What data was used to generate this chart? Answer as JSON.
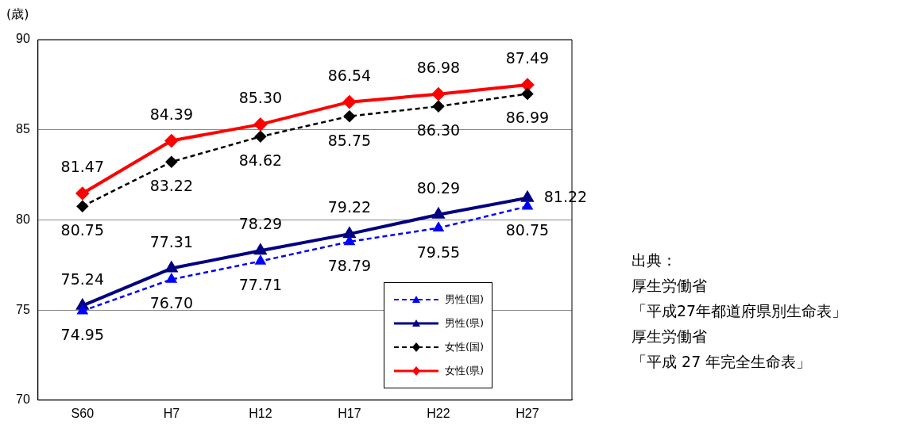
{
  "chart_data": {
    "type": "line",
    "ylabel": "(歳)",
    "categories": [
      "S60",
      "H7",
      "H12",
      "H17",
      "H22",
      "H27"
    ],
    "series": [
      {
        "name": "男性(国)",
        "color": "#0000ff",
        "marker": "triangle",
        "line_style": "dashed",
        "values": [
          74.95,
          76.7,
          77.71,
          78.79,
          79.55,
          80.75
        ],
        "value_labels": [
          "74.95",
          "76.70",
          "77.71",
          "78.79",
          "79.55",
          "80.75"
        ]
      },
      {
        "name": "男性(県)",
        "color": "#000080",
        "marker": "triangle",
        "line_style": "solid",
        "values": [
          75.24,
          77.31,
          78.29,
          79.22,
          80.29,
          81.22
        ],
        "value_labels": [
          "75.24",
          "77.31",
          "78.29",
          "79.22",
          "80.29",
          "81.22"
        ]
      },
      {
        "name": "女性(国)",
        "color": "#000000",
        "marker": "diamond",
        "line_style": "dashed",
        "values": [
          80.75,
          83.22,
          84.62,
          85.75,
          86.3,
          86.99
        ],
        "value_labels": [
          "80.75",
          "83.22",
          "84.62",
          "85.75",
          "86.30",
          "86.99"
        ]
      },
      {
        "name": "女性(県)",
        "color": "#ff0000",
        "marker": "diamond",
        "line_style": "solid",
        "values": [
          81.47,
          84.39,
          85.3,
          86.54,
          86.98,
          87.49
        ],
        "value_labels": [
          "81.47",
          "84.39",
          "85.30",
          "86.54",
          "86.98",
          "87.49"
        ]
      }
    ],
    "ylim": [
      70,
      90
    ],
    "yticks": [
      70,
      75,
      80,
      85,
      90
    ],
    "grid": "y",
    "legend": "bottom right",
    "annotations": [
      "出典：",
      "厚生労働省",
      "「平成27年都道府県別生命表」",
      "厚生労働省",
      "「平成 27 年完全生命表」"
    ]
  }
}
